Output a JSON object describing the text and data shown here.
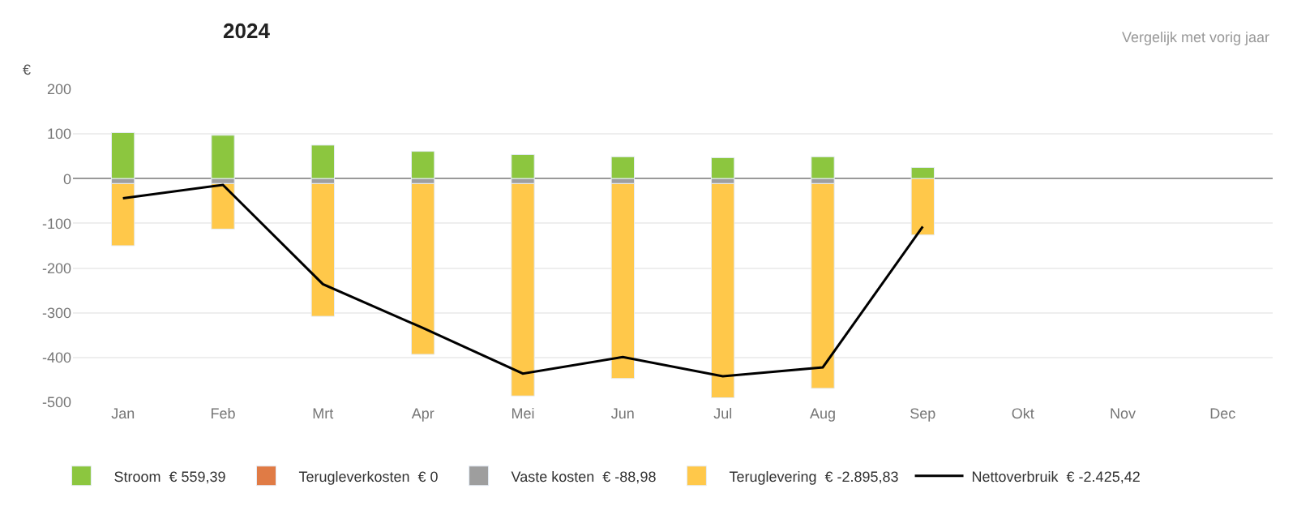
{
  "chart_data": {
    "type": "bar",
    "stacked": true,
    "title": "2024",
    "ylabel": "€",
    "categories": [
      "Jan",
      "Feb",
      "Mrt",
      "Apr",
      "Mei",
      "Jun",
      "Jul",
      "Aug",
      "Sep",
      "Okt",
      "Nov",
      "Dec"
    ],
    "series": [
      {
        "name": "Stroom  € 559,39",
        "color": "#8cc63f",
        "values": [
          103,
          97,
          75,
          61,
          54,
          49,
          47,
          49,
          25,
          null,
          null,
          null
        ]
      },
      {
        "name": "Terugleverkosten  € 0",
        "color": "#e07b45",
        "values": [
          null,
          null,
          null,
          null,
          null,
          null,
          null,
          null,
          null,
          null,
          null,
          null
        ]
      },
      {
        "name": "Vaste kosten  € -88,98",
        "color": "#9e9e9e",
        "values": [
          -11,
          -11,
          -11,
          -11,
          -11,
          -11,
          -11,
          -11,
          null,
          null,
          null,
          null
        ]
      },
      {
        "name": "Teruglevering  € -2.895,83",
        "color": "#ffc84a",
        "values": [
          -139,
          -102,
          -297,
          -382,
          -475,
          -436,
          -479,
          -458,
          -126,
          null,
          null,
          null
        ]
      },
      {
        "name": "Nettoverbruik  € -2.425,42",
        "color": "#000000",
        "type": "line",
        "values": [
          -44,
          -14,
          -236,
          -334,
          -436,
          -399,
          -442,
          -422,
          -107,
          null,
          null,
          null
        ]
      }
    ],
    "ylim": [
      -500,
      200
    ],
    "yticks": [
      -500,
      -400,
      -300,
      -200,
      -100,
      0,
      100,
      200
    ],
    "grid": "y",
    "legend": "bottom",
    "marker": "none",
    "annotations": [
      "Vergelijk met vorig jaar"
    ]
  }
}
